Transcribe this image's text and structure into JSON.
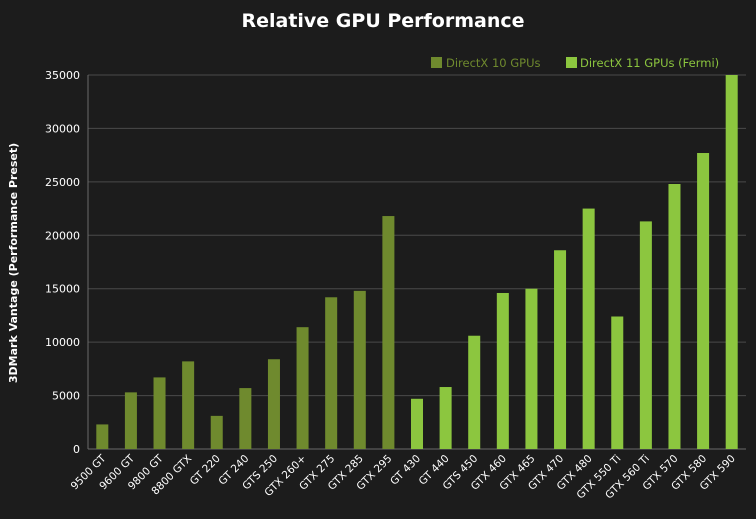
{
  "chart_data": {
    "type": "bar",
    "title": "Relative GPU Performance",
    "ylabel": "3DMark Vantage (Performance Preset)",
    "xlabel": "",
    "ylim": [
      0,
      35000
    ],
    "yticks": [
      0,
      5000,
      10000,
      15000,
      20000,
      25000,
      30000,
      35000
    ],
    "grid": true,
    "legend_position": "top-right",
    "categories": [
      "9500 GT",
      "9600 GT",
      "9800 GT",
      "8800 GTX",
      "GT 220",
      "GT 240",
      "GTS 250",
      "GTX 260+",
      "GTX 275",
      "GTX 285",
      "GTX 295",
      "GT 430",
      "GT 440",
      "GTS 450",
      "GTX 460",
      "GTX 465",
      "GTX 470",
      "GTX 480",
      "GTX 550 Ti",
      "GTX 560 Ti",
      "GTX 570",
      "GTX 580",
      "GTX 590"
    ],
    "series": [
      {
        "name": "DirectX 10 GPUs",
        "color": "#6f8a2e",
        "values": [
          2300,
          5300,
          6700,
          8200,
          3100,
          5700,
          8400,
          11400,
          14200,
          14800,
          21800,
          null,
          null,
          null,
          null,
          null,
          null,
          null,
          null,
          null,
          null,
          null,
          null
        ]
      },
      {
        "name": "DirectX 11 GPUs (Fermi)",
        "color": "#8cc63f",
        "values": [
          null,
          null,
          null,
          null,
          null,
          null,
          null,
          null,
          null,
          null,
          null,
          4700,
          5800,
          10600,
          14600,
          15000,
          18600,
          22500,
          12400,
          21300,
          24800,
          27700,
          35000
        ]
      }
    ]
  }
}
